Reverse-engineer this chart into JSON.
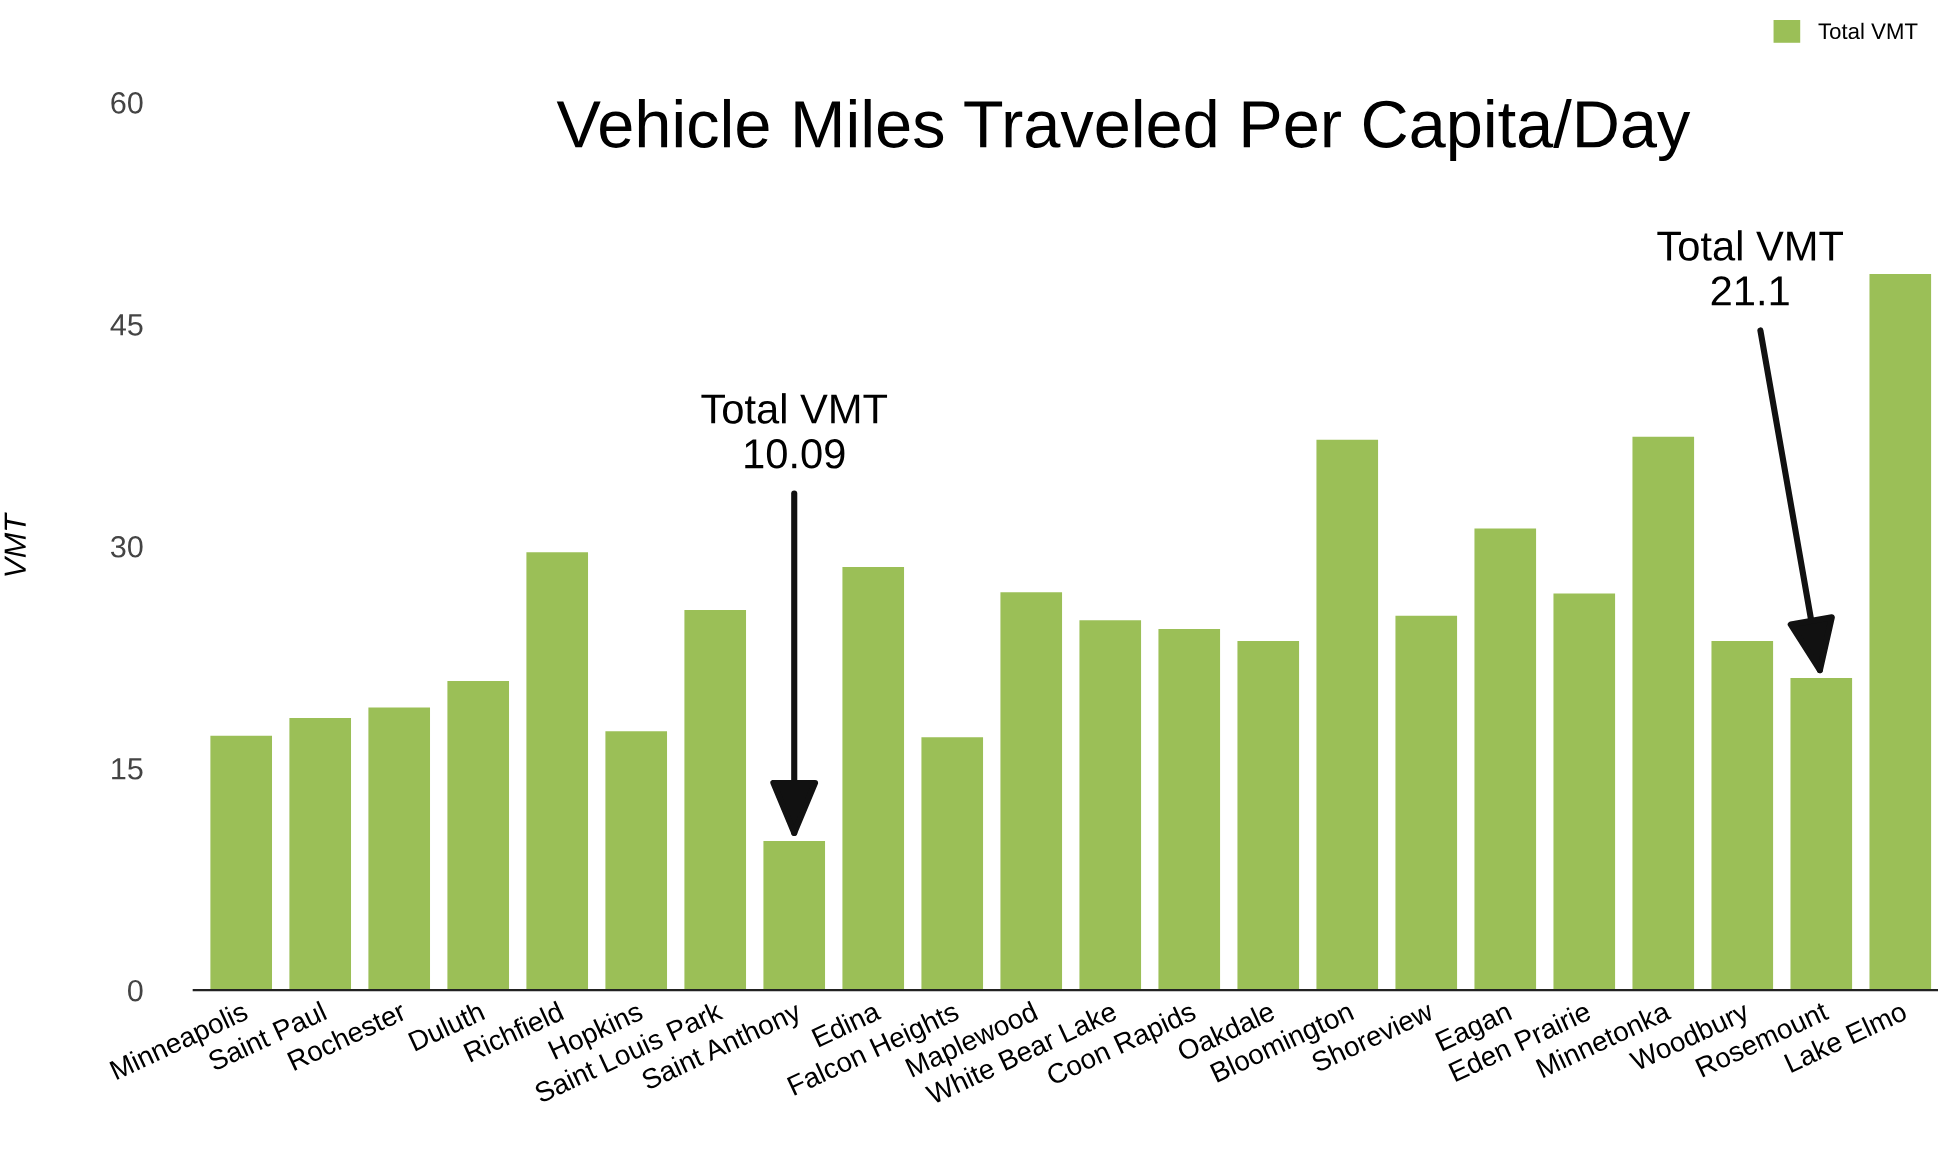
{
  "chart_data": {
    "type": "bar",
    "title": "Vehicle Miles Traveled Per Capita/Day",
    "ylabel": "VMT",
    "categories": [
      "Minneapolis",
      "Saint Paul",
      "Rochester",
      "Duluth",
      "Richfield",
      "Hopkins",
      "Saint Louis Park",
      "Saint Anthony",
      "Edina",
      "Falcon Heights",
      "Maplewood",
      "White Bear Lake",
      "Coon Rapids",
      "Oakdale",
      "Bloomington",
      "Shoreview",
      "Eagan",
      "Eden Prairie",
      "Minnetonka",
      "Woodbury",
      "Rosemount",
      "Lake Elmo"
    ],
    "series": [
      {
        "name": "Total VMT",
        "color": "#9bbf57",
        "values": [
          17.2,
          18.4,
          19.1,
          20.9,
          29.6,
          17.5,
          25.7,
          10.09,
          28.6,
          17.1,
          26.9,
          25.0,
          24.4,
          23.6,
          37.2,
          25.3,
          31.2,
          26.8,
          37.4,
          23.6,
          21.1,
          48.4
        ]
      }
    ],
    "annotations": [
      {
        "text": "Total VMT\n10.09",
        "x": "Saint Anthony",
        "y": 10.09
      },
      {
        "text": "Total VMT\n21.1",
        "x": "Rosemount",
        "y": 21.1
      }
    ],
    "ylim": [
      0,
      60
    ],
    "yticks": [
      0,
      15,
      30,
      45,
      60
    ],
    "grid": false,
    "legend": "top right"
  }
}
